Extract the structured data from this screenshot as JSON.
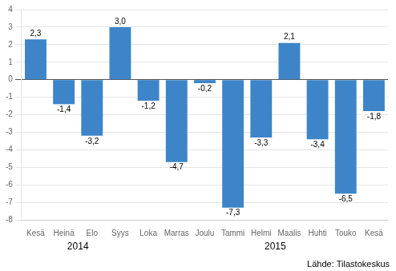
{
  "chart_data": {
    "type": "bar",
    "categories": [
      "Kesä",
      "Heinä",
      "Elo",
      "Syys",
      "Loka",
      "Marras",
      "Joulu",
      "Tammi",
      "Helmi",
      "Maalis",
      "Huhti",
      "Touko",
      "Kesä"
    ],
    "values": [
      2.3,
      -1.4,
      -3.2,
      3.0,
      -1.2,
      -4.7,
      -0.2,
      -7.3,
      -3.3,
      2.1,
      -3.4,
      -6.5,
      -1.8
    ],
    "value_labels": [
      "2,3",
      "-1,4",
      "-3,2",
      "3,0",
      "-1,2",
      "-4,7",
      "-0,2",
      "-7,3",
      "-3,3",
      "2,1",
      "-3,4",
      "-6,5",
      "-1,8"
    ],
    "data_labels": true,
    "color": "#3d85c8",
    "ylim": [
      -8,
      4
    ],
    "yticks": [
      -8,
      -7,
      -6,
      -5,
      -4,
      -3,
      -2,
      -1,
      0,
      1,
      2,
      3,
      4
    ],
    "grid": true,
    "annotations": [
      "2014",
      "2015",
      "Lähde: Tilastokeskus"
    ]
  }
}
